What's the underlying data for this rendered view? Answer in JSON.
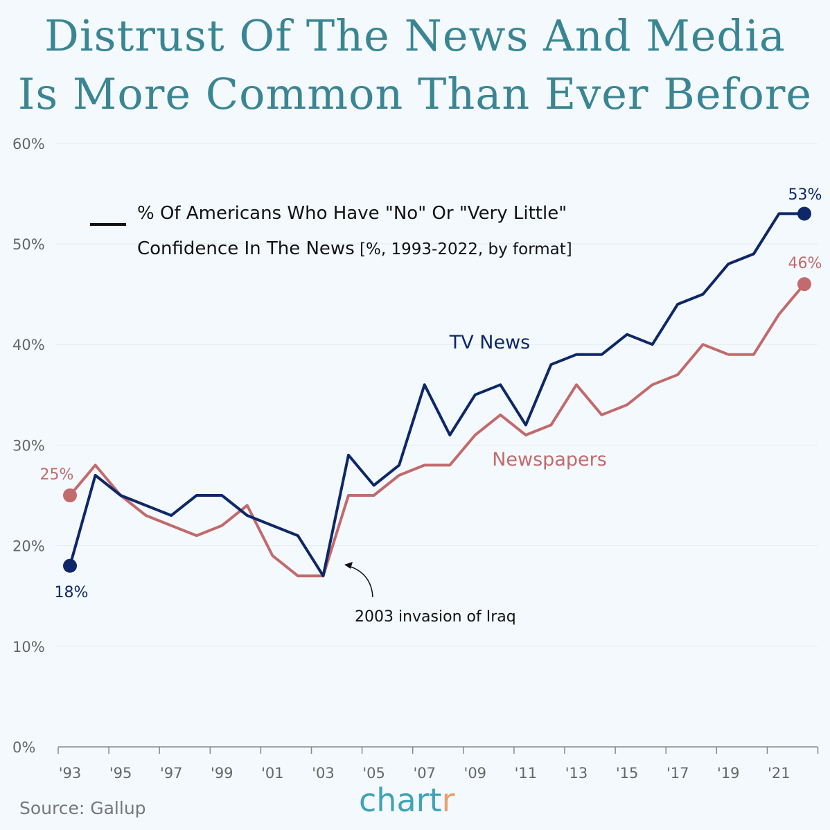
{
  "title_lines": [
    "Distrust Of The News And Media",
    "Is More Common Than Ever Before"
  ],
  "source": "Source: Gallup",
  "logo": "chartr",
  "colors": {
    "tv": "#0e2768",
    "newspapers": "#c26a6c",
    "title": "#3a8593",
    "background": "#f3f9fc"
  },
  "chart_data": {
    "type": "line",
    "legend_line1": "% Of Americans Who Have \"No\" Or \"Very Little\"",
    "legend_line2_bold": "Confidence In The News",
    "legend_line2_rest": " [%, 1993-2022, by format]",
    "annotation": "2003 invasion of Iraq",
    "ylim": [
      0,
      60
    ],
    "y_ticks": [
      "0%",
      "10%",
      "20%",
      "30%",
      "40%",
      "50%",
      "60%"
    ],
    "x_tick_labels": [
      "'93",
      "'95",
      "'97",
      "'99",
      "'01",
      "'03",
      "'05",
      "'07",
      "'09",
      "'11",
      "'13",
      "'15",
      "'17",
      "'19",
      "'21"
    ],
    "x": [
      1993,
      1994,
      1995,
      1996,
      1997,
      1998,
      1999,
      2000,
      2001,
      2002,
      2003,
      2004,
      2005,
      2006,
      2007,
      2008,
      2009,
      2010,
      2011,
      2012,
      2013,
      2014,
      2015,
      2016,
      2017,
      2018,
      2019,
      2020,
      2021,
      2022
    ],
    "series": [
      {
        "name": "TV News",
        "start_label": "18%",
        "end_label": "53%",
        "values": [
          18,
          27,
          25,
          24,
          23,
          25,
          25,
          23,
          22,
          21,
          17,
          29,
          26,
          28,
          36,
          31,
          35,
          36,
          32,
          38,
          39,
          39,
          41,
          40,
          44,
          45,
          48,
          49,
          53,
          53
        ]
      },
      {
        "name": "Newspapers",
        "start_label": "25%",
        "end_label": "46%",
        "values": [
          25,
          28,
          25,
          23,
          22,
          21,
          22,
          24,
          19,
          17,
          17,
          25,
          25,
          27,
          28,
          28,
          31,
          33,
          31,
          32,
          36,
          33,
          34,
          36,
          37,
          40,
          39,
          39,
          43,
          46
        ]
      }
    ]
  }
}
